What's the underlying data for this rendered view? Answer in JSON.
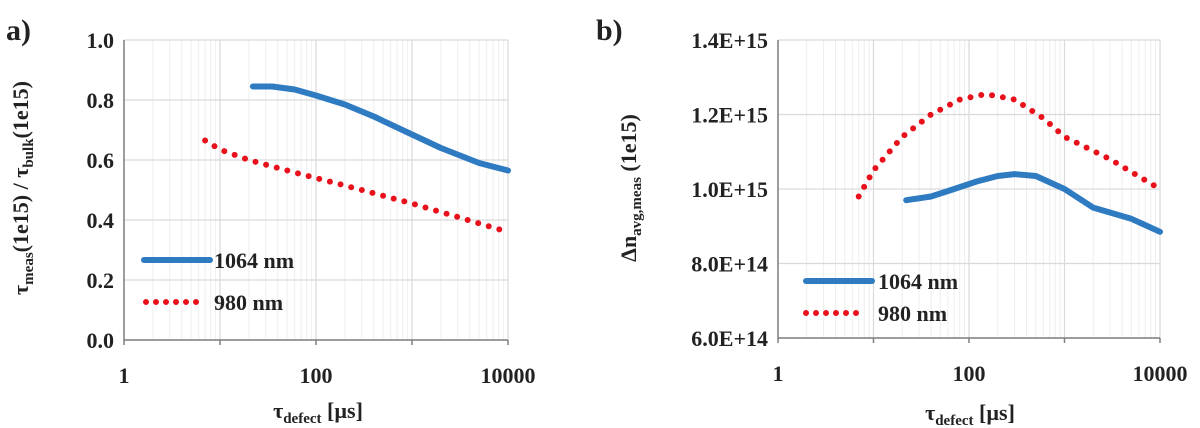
{
  "colors": {
    "series_1064": "#2f7bc2",
    "series_980": "#e8111b",
    "grid": "#d9d9d9",
    "axis": "#7f7f7f",
    "text": "#222222"
  },
  "chart_data": [
    {
      "panel_label": "a)",
      "type": "line",
      "x_scale": "log",
      "xlim": [
        1,
        10000
      ],
      "ylim": [
        0.0,
        1.0
      ],
      "x_ticks": [
        1,
        100,
        10000
      ],
      "x_tick_labels": [
        "1",
        "100",
        "10000"
      ],
      "y_ticks": [
        0.0,
        0.2,
        0.4,
        0.6,
        0.8,
        1.0
      ],
      "y_tick_labels": [
        "0.0",
        "0.2",
        "0.4",
        "0.6",
        "0.8",
        "1.0"
      ],
      "grid": true,
      "legend_position": "lower-left",
      "xlabel": {
        "main": "τ",
        "sub": "defect",
        "rest": " [µs]"
      },
      "ylabel": {
        "p1": "τ",
        "s1": "meas",
        "p2": "(1e15) / τ",
        "s2": "bulk",
        "p3": "(1e15)"
      },
      "series": [
        {
          "name": "1064 nm",
          "style": "solid",
          "x": [
            22,
            35,
            60,
            100,
            200,
            400,
            1000,
            2000,
            5000,
            10000
          ],
          "y": [
            0.845,
            0.845,
            0.835,
            0.815,
            0.785,
            0.745,
            0.685,
            0.64,
            0.59,
            0.565
          ]
        },
        {
          "name": "980 nm",
          "style": "dotted",
          "x": [
            7,
            10,
            20,
            50,
            100,
            300,
            1000,
            3000,
            10000
          ],
          "y": [
            0.665,
            0.635,
            0.6,
            0.565,
            0.54,
            0.5,
            0.455,
            0.41,
            0.36
          ]
        }
      ]
    },
    {
      "panel_label": "b)",
      "type": "line",
      "x_scale": "log",
      "xlim": [
        1,
        10000
      ],
      "ylim": [
        600000000000000.0,
        1400000000000000.0
      ],
      "x_ticks": [
        1,
        100,
        10000
      ],
      "x_tick_labels": [
        "1",
        "100",
        "10000"
      ],
      "y_ticks": [
        600000000000000.0,
        800000000000000.0,
        1000000000000000.0,
        1200000000000000.0,
        1400000000000000.0
      ],
      "y_tick_labels": [
        "6.0E+14",
        "8.0E+14",
        "1.0E+15",
        "1.2E+15",
        "1.4E+15"
      ],
      "grid": true,
      "legend_position": "lower-left",
      "xlabel": {
        "main": "τ",
        "sub": "defect",
        "rest": " [µs]"
      },
      "ylabel": {
        "p1": "Δn",
        "s1": "avg,meas",
        "p2": " (1e15)"
      },
      "series": [
        {
          "name": "1064 nm",
          "style": "solid",
          "x": [
            22,
            40,
            70,
            120,
            200,
            300,
            500,
            1000,
            2000,
            5000,
            10000
          ],
          "y": [
            970000000000000.0,
            980000000000000.0,
            1000000000000000.0,
            1020000000000000.0,
            1035000000000000.0,
            1040000000000000.0,
            1035000000000000.0,
            1000000000000000.0,
            950000000000000.0,
            920000000000000.0,
            885000000000000.0
          ]
        },
        {
          "name": "980 nm",
          "style": "dotted",
          "x": [
            7,
            10,
            20,
            40,
            80,
            150,
            300,
            600,
            1000,
            3000,
            10000
          ],
          "y": [
            980000000000000.0,
            1050000000000000.0,
            1140000000000000.0,
            1200000000000000.0,
            1240000000000000.0,
            1255000000000000.0,
            1240000000000000.0,
            1190000000000000.0,
            1140000000000000.0,
            1080000000000000.0,
            1000000000000000.0
          ]
        }
      ]
    }
  ]
}
